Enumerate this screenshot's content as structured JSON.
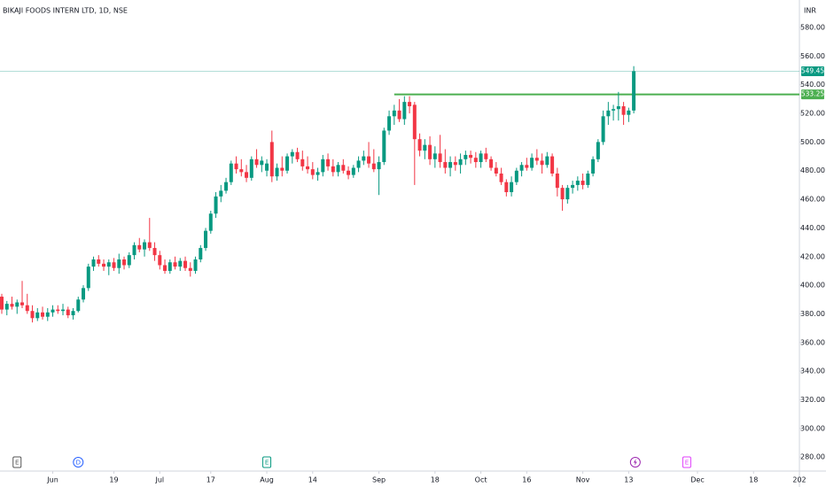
{
  "chart_data": {
    "type": "candlestick",
    "title": "BIKAJI FOODS INTERN LTD, 1D, NSE",
    "currency": "INR",
    "up_color": "#089981",
    "down_color": "#f23645",
    "open": [
      392,
      383,
      387,
      385,
      388,
      386,
      382,
      377,
      381,
      378,
      381,
      383,
      382,
      383,
      379,
      382,
      390,
      398,
      413,
      418,
      415,
      413,
      416,
      412,
      418,
      414,
      421,
      428,
      425,
      430,
      426,
      421,
      414,
      410,
      416,
      413,
      417,
      412,
      410,
      418,
      426,
      438,
      450,
      462,
      466,
      472,
      485,
      481,
      479,
      475,
      488,
      484,
      480,
      500,
      476,
      482,
      480,
      490,
      493,
      488,
      483,
      481,
      477,
      479,
      488,
      483,
      479,
      484,
      480,
      477,
      482,
      487,
      490,
      485,
      481,
      486,
      508,
      518,
      522,
      516,
      528,
      526,
      502,
      494,
      498,
      488,
      492,
      486,
      482,
      486,
      484,
      488,
      491,
      489,
      486,
      492,
      488,
      482,
      478,
      472,
      465,
      472,
      480,
      484,
      482,
      489,
      487,
      484,
      490,
      478,
      468,
      460,
      468,
      470,
      473,
      470,
      478,
      488,
      500,
      518,
      522,
      523,
      525,
      519,
      522
    ],
    "high": [
      394,
      389,
      392,
      390,
      403,
      394,
      386,
      384,
      385,
      384,
      386,
      386,
      387,
      385,
      384,
      392,
      400,
      415,
      420,
      421,
      418,
      418,
      419,
      422,
      420,
      423,
      430,
      433,
      432,
      447,
      430,
      424,
      418,
      418,
      420,
      419,
      420,
      416,
      420,
      428,
      440,
      452,
      465,
      470,
      475,
      487,
      490,
      488,
      484,
      490,
      495,
      490,
      488,
      508,
      485,
      490,
      492,
      495,
      496,
      494,
      490,
      486,
      482,
      491,
      492,
      488,
      486,
      488,
      483,
      484,
      490,
      494,
      500,
      495,
      490,
      510,
      522,
      526,
      530,
      532,
      532,
      528,
      506,
      502,
      504,
      497,
      505,
      495,
      490,
      490,
      492,
      494,
      494,
      493,
      494,
      496,
      490,
      486,
      482,
      474,
      476,
      482,
      486,
      489,
      492,
      495,
      492,
      493,
      492,
      482,
      470,
      470,
      473,
      476,
      478,
      480,
      490,
      502,
      522,
      528,
      526,
      535,
      528,
      524,
      553
    ],
    "low": [
      380,
      379,
      383,
      380,
      384,
      380,
      374,
      375,
      376,
      375,
      378,
      380,
      379,
      377,
      376,
      381,
      388,
      396,
      410,
      413,
      410,
      407,
      410,
      408,
      411,
      412,
      418,
      423,
      420,
      424,
      417,
      411,
      408,
      408,
      411,
      410,
      410,
      406,
      408,
      416,
      424,
      436,
      447,
      458,
      464,
      470,
      478,
      476,
      472,
      473,
      482,
      479,
      476,
      472,
      473,
      476,
      478,
      485,
      486,
      480,
      478,
      474,
      473,
      476,
      480,
      476,
      476,
      478,
      474,
      475,
      479,
      484,
      482,
      479,
      463,
      484,
      505,
      512,
      514,
      512,
      520,
      470,
      490,
      488,
      484,
      482,
      482,
      478,
      476,
      480,
      478,
      484,
      485,
      482,
      482,
      486,
      480,
      476,
      470,
      462,
      462,
      470,
      476,
      480,
      480,
      484,
      478,
      482,
      476,
      462,
      452,
      457,
      464,
      466,
      467,
      468,
      476,
      486,
      498,
      512,
      515,
      515,
      512,
      514,
      520
    ],
    "close": [
      383,
      387,
      385,
      388,
      386,
      382,
      377,
      381,
      378,
      381,
      383,
      382,
      383,
      379,
      382,
      390,
      398,
      413,
      418,
      415,
      413,
      416,
      412,
      418,
      414,
      421,
      428,
      425,
      430,
      426,
      421,
      414,
      410,
      416,
      413,
      417,
      412,
      410,
      418,
      426,
      438,
      450,
      462,
      466,
      472,
      485,
      481,
      479,
      475,
      488,
      484,
      487,
      485,
      476,
      482,
      480,
      490,
      493,
      488,
      483,
      481,
      477,
      479,
      488,
      483,
      479,
      484,
      480,
      477,
      482,
      487,
      490,
      485,
      481,
      486,
      508,
      518,
      522,
      516,
      528,
      525,
      502,
      494,
      498,
      488,
      492,
      486,
      482,
      486,
      484,
      488,
      491,
      489,
      486,
      492,
      488,
      482,
      478,
      472,
      465,
      472,
      480,
      484,
      482,
      489,
      487,
      484,
      490,
      478,
      468,
      460,
      468,
      470,
      473,
      470,
      478,
      488,
      500,
      518,
      522,
      523,
      525,
      519,
      522,
      549.45
    ],
    "xlim": [
      -0.35,
      156.5
    ],
    "xticks": [
      {
        "value": 10,
        "label": "Jun"
      },
      {
        "value": 22,
        "label": "19"
      },
      {
        "value": 31,
        "label": "Jul"
      },
      {
        "value": 41,
        "label": "17"
      },
      {
        "value": 52,
        "label": "Aug"
      },
      {
        "value": 61,
        "label": "14"
      },
      {
        "value": 74,
        "label": "Sep"
      },
      {
        "value": 85,
        "label": "18"
      },
      {
        "value": 94,
        "label": "Oct"
      },
      {
        "value": 103,
        "label": "16"
      },
      {
        "value": 114,
        "label": "Nov"
      },
      {
        "value": 123,
        "label": "13"
      },
      {
        "value": 136.5,
        "label": "Dec"
      },
      {
        "value": 147.5,
        "label": "18"
      },
      {
        "value": 156.5,
        "label": "202"
      }
    ],
    "ylim": [
      270.2,
      599.2
    ],
    "yticks": [
      {
        "value": 280,
        "label": "280.00"
      },
      {
        "value": 300,
        "label": "300.00"
      },
      {
        "value": 320,
        "label": "320.00"
      },
      {
        "value": 340,
        "label": "340.00"
      },
      {
        "value": 360,
        "label": "360.00"
      },
      {
        "value": 380,
        "label": "380.00"
      },
      {
        "value": 400,
        "label": "400.00"
      },
      {
        "value": 420,
        "label": "420.00"
      },
      {
        "value": 440,
        "label": "440.00"
      },
      {
        "value": 460,
        "label": "460.00"
      },
      {
        "value": 480,
        "label": "480.00"
      },
      {
        "value": 500,
        "label": "500.00"
      },
      {
        "value": 520,
        "label": "520.00"
      },
      {
        "value": 540,
        "label": "540.00"
      },
      {
        "value": 560,
        "label": "560.00"
      },
      {
        "value": 580,
        "label": "580.00"
      }
    ],
    "resistance": {
      "value": 533.25,
      "start": 77,
      "color": "#4caf50"
    },
    "last_price": {
      "value": 549.45,
      "color": "#089981"
    },
    "events": [
      {
        "label": "E",
        "x": 3,
        "color": "#555555"
      },
      {
        "label": "D",
        "x": 15,
        "color": "#2962ff"
      },
      {
        "label": "E",
        "x": 52,
        "color": "#089981"
      },
      {
        "x": 124.3,
        "color": "#9c27b0"
      },
      {
        "label": "E",
        "x": 134.4,
        "color": "#e040fb"
      }
    ]
  }
}
